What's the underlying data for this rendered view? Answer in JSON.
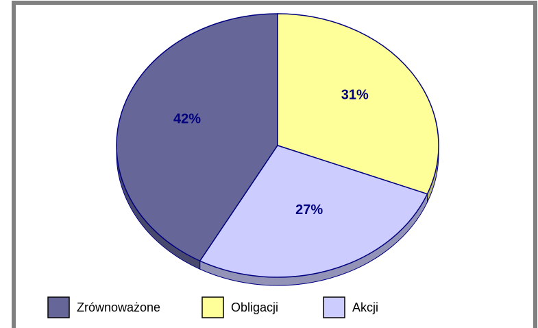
{
  "chart_data": {
    "type": "pie",
    "categories": [
      "Zrównoważone",
      "Obligacji",
      "Akcji"
    ],
    "values": [
      42,
      31,
      27
    ],
    "value_labels": [
      "42%",
      "31%",
      "27%"
    ],
    "colors": [
      "#666699",
      "#ffff99",
      "#ccccff"
    ],
    "legend": "bottom"
  }
}
